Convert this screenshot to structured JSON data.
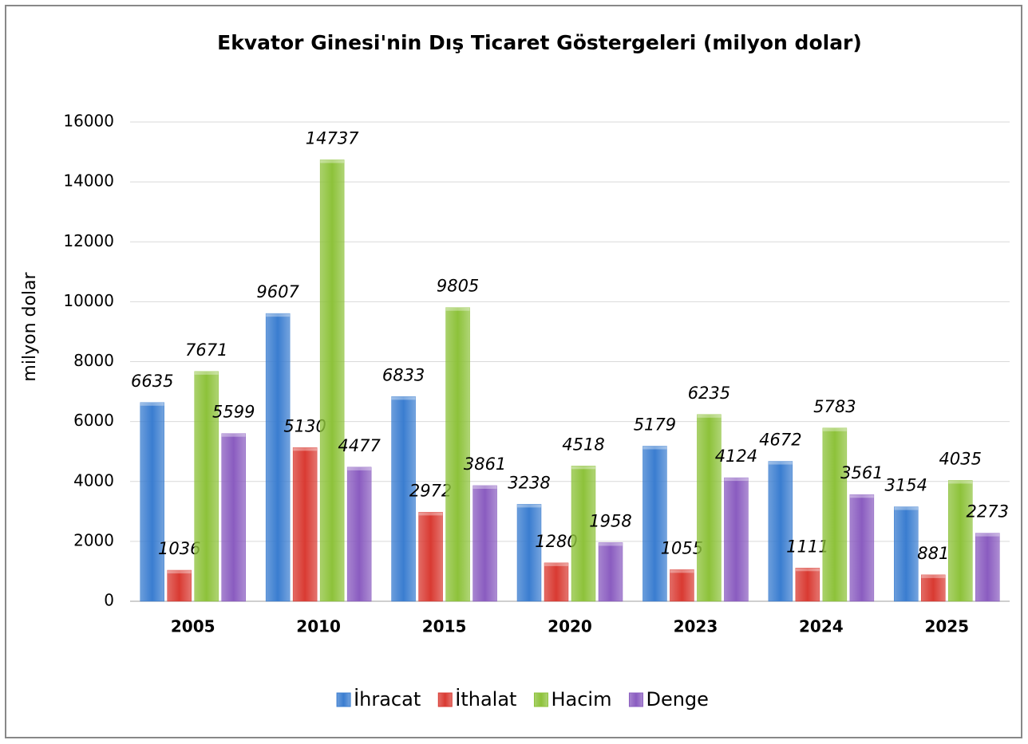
{
  "chart_data": {
    "type": "bar",
    "title": "Ekvator Ginesi'nin Dış Ticaret Göstergeleri (milyon dolar)",
    "y_label": "milyon dolar",
    "categories": [
      "2005",
      "2010",
      "2015",
      "2020",
      "2023",
      "2024",
      "2025"
    ],
    "series": [
      {
        "name": "İhracat",
        "color": "#3a7dd0",
        "values": [
          6635,
          9607,
          6833,
          3238,
          5179,
          4672,
          3154
        ]
      },
      {
        "name": "İthalat",
        "color": "#d93a32",
        "values": [
          1036,
          5130,
          2972,
          1280,
          1055,
          1111,
          881
        ]
      },
      {
        "name": "Hacim",
        "color": "#8dc23a",
        "values": [
          7671,
          14737,
          9805,
          4518,
          6235,
          5783,
          4035
        ]
      },
      {
        "name": "Denge",
        "color": "#8a5cc0",
        "values": [
          5599,
          4477,
          3861,
          1958,
          4124,
          3561,
          2273
        ]
      }
    ],
    "ylim": [
      0,
      16000
    ],
    "yticks": [
      0,
      2000,
      4000,
      6000,
      8000,
      10000,
      12000,
      14000,
      16000
    ],
    "grid": true,
    "legend": "bottom"
  }
}
